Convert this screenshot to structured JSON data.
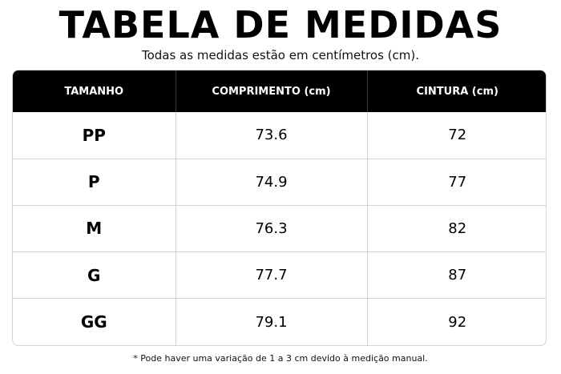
{
  "title": "TABELA DE MEDIDAS",
  "subtitle": "Todas as medidas estão em centímetros (cm).",
  "table": {
    "headers": [
      "TAMANHO",
      "COMPRIMENTO (cm)",
      "CINTURA (cm)"
    ],
    "rows": [
      {
        "size": "PP",
        "length": "73.6",
        "waist": "72"
      },
      {
        "size": "P",
        "length": "74.9",
        "waist": "77"
      },
      {
        "size": "M",
        "length": "76.3",
        "waist": "82"
      },
      {
        "size": "G",
        "length": "77.7",
        "waist": "87"
      },
      {
        "size": "GG",
        "length": "79.1",
        "waist": "92"
      }
    ]
  },
  "footnote": "* Pode haver uma variação de 1 a 3 cm devido à medição manual.",
  "colors": {
    "header_bg": "#000000",
    "header_text": "#ffffff",
    "border": "#d4d4d4"
  }
}
